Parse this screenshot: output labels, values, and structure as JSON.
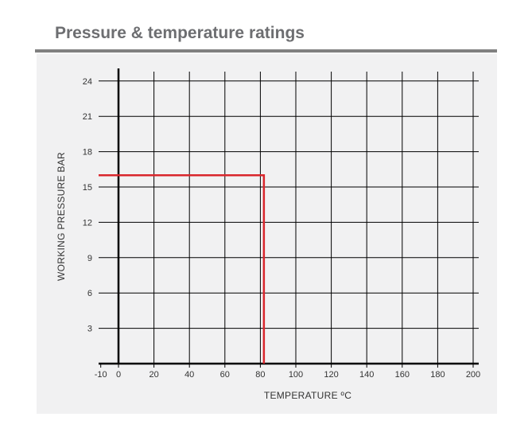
{
  "header": {
    "title": "Pressure & temperature ratings"
  },
  "chart_data": {
    "type": "line",
    "title": "",
    "xlabel": "TEMPERATURE ºC",
    "ylabel": "WORKING PRESSURE BAR",
    "xlim": [
      -10,
      200
    ],
    "ylim": [
      0,
      24
    ],
    "x_ticks": [
      -10,
      0,
      20,
      40,
      60,
      80,
      100,
      120,
      140,
      160,
      180,
      200
    ],
    "y_ticks": [
      3,
      6,
      9,
      12,
      15,
      18,
      21,
      24
    ],
    "grid": true,
    "series": [
      {
        "color": "#d9262c",
        "points": [
          [
            -10,
            16
          ],
          [
            82,
            16
          ],
          [
            82,
            0
          ]
        ]
      }
    ],
    "colors": {
      "grid": "#000000",
      "axis": "#000000",
      "panel": "#f1f1f2",
      "title": "#6d6e71",
      "rule": "#808080"
    }
  }
}
